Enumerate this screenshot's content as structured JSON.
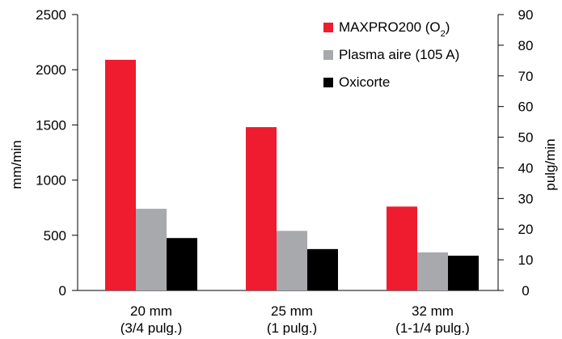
{
  "chart_data": {
    "type": "bar",
    "title": "",
    "xlabel": "",
    "ylabel": "mm/min",
    "y2label": "pulg/min",
    "ylim": [
      0,
      2500
    ],
    "y2lim": [
      0,
      90
    ],
    "yticks": [
      "0",
      "500",
      "1000",
      "1500",
      "2000",
      "2500"
    ],
    "y2ticks": [
      "0",
      "10",
      "20",
      "30",
      "40",
      "50",
      "60",
      "70",
      "80",
      "90"
    ],
    "grid": false,
    "legend_position": "top-right",
    "categories": [
      {
        "line1": "20 mm",
        "line2": "(3/4 pulg.)"
      },
      {
        "line1": "25 mm",
        "line2": "(1 pulg.)"
      },
      {
        "line1": "32 mm",
        "line2": "(1-1/4 pulg.)"
      }
    ],
    "series": [
      {
        "name": "MAXPRO200 (O",
        "name_sub": "2",
        "name_suffix": ")",
        "color": "#ee1c2e",
        "values": [
          2090,
          1480,
          760
        ]
      },
      {
        "name": "Plasma aire (105 A)",
        "name_sub": "",
        "name_suffix": "",
        "color": "#a7a9ac",
        "values": [
          740,
          540,
          345
        ]
      },
      {
        "name": "Oxicorte",
        "name_sub": "",
        "name_suffix": "",
        "color": "#000000",
        "values": [
          475,
          375,
          315
        ]
      }
    ]
  }
}
